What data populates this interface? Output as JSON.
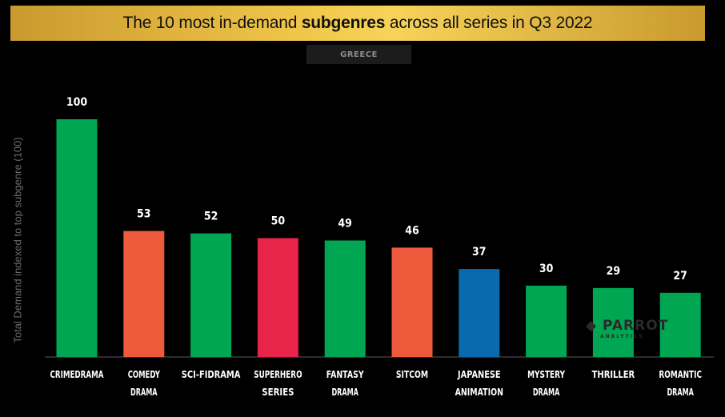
{
  "title": {
    "prefix": "The 10 most in-demand ",
    "bold": "subgenres",
    "suffix": " across all series in Q3 2022"
  },
  "region": "GREECE",
  "watermark": {
    "name": "PARROT",
    "sub": "ANALYTICS"
  },
  "colors": {
    "green": "#00a651",
    "orange": "#ee5a3c",
    "red": "#e8244b",
    "blue": "#0a6aad",
    "title_gold": "#f2c94c"
  },
  "chart_data": {
    "type": "bar",
    "ylabel": "Total Demand indexed to top subgenre (100)",
    "ylim": [
      0,
      100
    ],
    "grid": false,
    "categories": [
      [
        "CRIMEDRAMA"
      ],
      [
        "COMEDY",
        "DRAMA"
      ],
      [
        "SCI-FIDRAMA"
      ],
      [
        "SUPERHERO",
        "SERIES"
      ],
      [
        "FANTASY",
        "DRAMA"
      ],
      [
        "SITCOM"
      ],
      [
        "JAPANESE",
        "ANIMATION"
      ],
      [
        "MYSTERY",
        "DRAMA"
      ],
      [
        "THRILLER"
      ],
      [
        "ROMANTIC",
        "DRAMA"
      ]
    ],
    "values": [
      100,
      53,
      52,
      50,
      49,
      46,
      37,
      30,
      29,
      27
    ],
    "bar_colors": [
      "#00a651",
      "#ee5a3c",
      "#00a651",
      "#e8244b",
      "#00a651",
      "#ee5a3c",
      "#0a6aad",
      "#00a651",
      "#00a651",
      "#00a651"
    ]
  }
}
